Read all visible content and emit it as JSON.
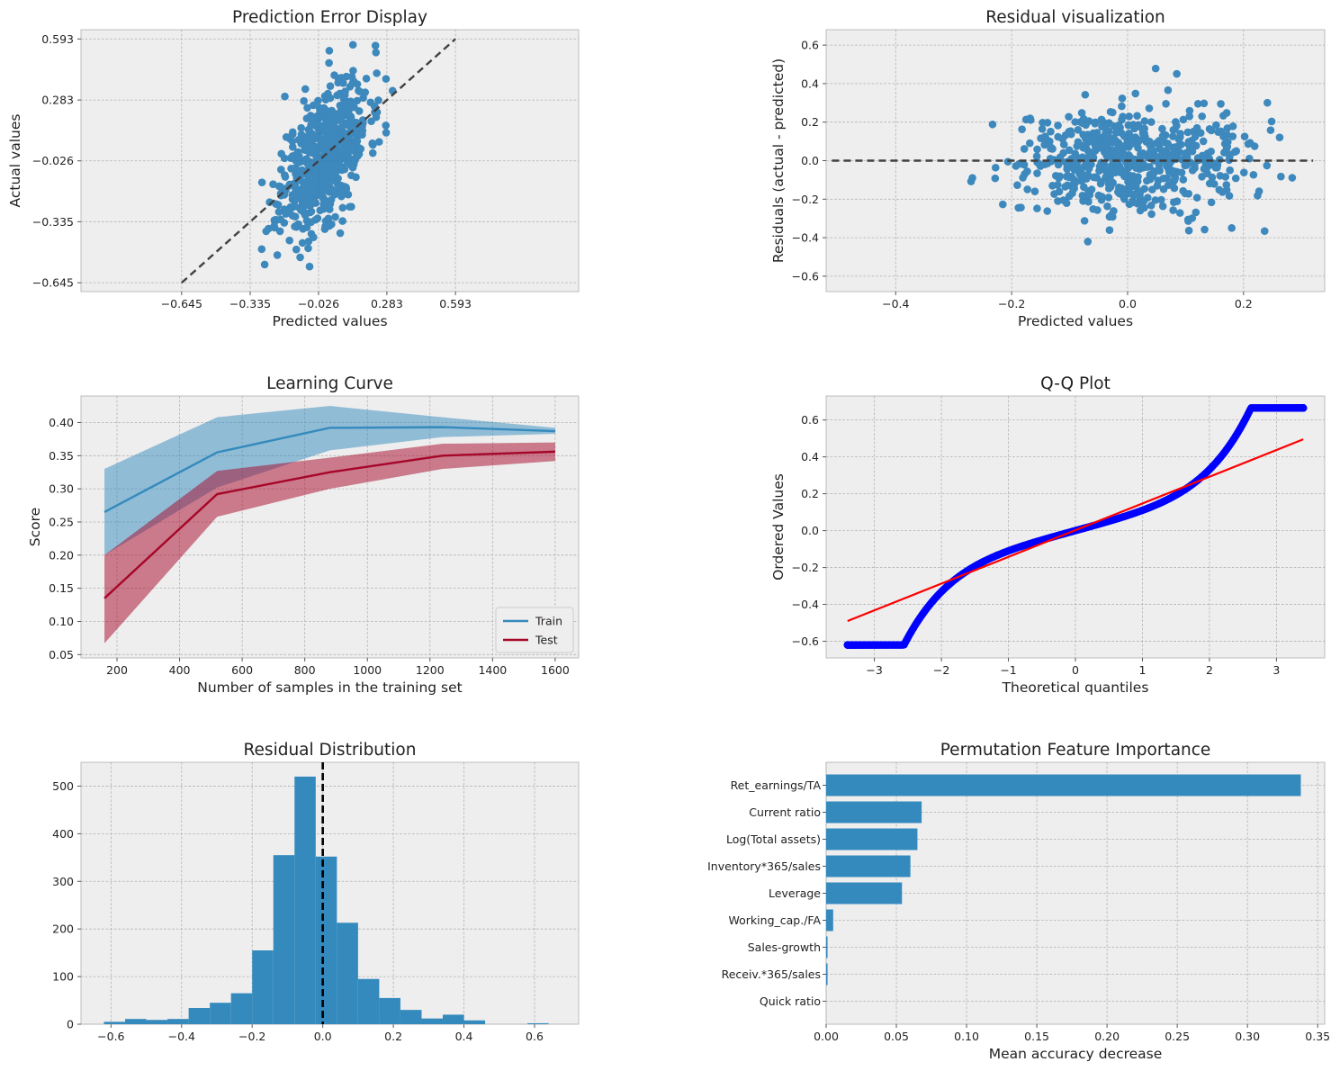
{
  "colors": {
    "scatter": "#1f77b4",
    "train": "#348abd",
    "test": "#a60628",
    "qq_points": "#0000ff",
    "qq_line": "#ff0000",
    "bar": "#348abd",
    "panel_bg": "#eeeeee",
    "reference_line": "#404040"
  },
  "chart_data": [
    {
      "id": "prediction_error",
      "type": "scatter",
      "title": "Prediction Error Display",
      "xlabel": "Predicted values",
      "ylabel": "Actual values",
      "xlim": [
        -1.1,
        1.15
      ],
      "ylim": [
        -0.69,
        0.64
      ],
      "xticks": [
        -0.645,
        -0.335,
        -0.026,
        0.283,
        0.593
      ],
      "xtick_labels": [
        "−0.645",
        "−0.335",
        "−0.026",
        "0.283",
        "0.593"
      ],
      "yticks": [
        -0.645,
        -0.335,
        -0.026,
        0.283,
        0.593
      ],
      "ytick_labels": [
        "−0.645",
        "−0.335",
        "−0.026",
        "0.283",
        "0.593"
      ],
      "reference_line": {
        "from": [
          -0.645,
          -0.645
        ],
        "to": [
          0.593,
          0.593
        ]
      },
      "points": {
        "n": 600,
        "center_x": 0.0,
        "center_y": 0.0,
        "spread_x": 0.1,
        "spread_y": 0.22,
        "slope": 1.0
      }
    },
    {
      "id": "residuals",
      "type": "scatter",
      "title": "Residual visualization",
      "xlabel": "Predicted values",
      "ylabel": "Residuals (actual - predicted)",
      "xlim": [
        -0.52,
        0.34
      ],
      "ylim": [
        -0.68,
        0.68
      ],
      "xticks": [
        -0.4,
        -0.2,
        0.0,
        0.2
      ],
      "xtick_labels": [
        "−0.4",
        "−0.2",
        "0.0",
        "0.2"
      ],
      "yticks": [
        -0.6,
        -0.4,
        -0.2,
        0.0,
        0.2,
        0.4,
        0.6
      ],
      "ytick_labels": [
        "−0.6",
        "−0.4",
        "−0.2",
        "0.0",
        "0.2",
        "0.4",
        "0.6"
      ],
      "reference_line": {
        "from": [
          -0.51,
          0.0
        ],
        "to": [
          0.32,
          0.0
        ]
      },
      "points": {
        "n": 600,
        "center_x": 0.0,
        "spread_x": 0.1,
        "spread_y": 0.14
      }
    },
    {
      "id": "learning_curve",
      "type": "line",
      "title": "Learning Curve",
      "xlabel": "Number of samples in the training set",
      "ylabel": "Score",
      "xlim": [
        85,
        1675
      ],
      "ylim": [
        0.045,
        0.44
      ],
      "xticks": [
        200,
        400,
        600,
        800,
        1000,
        1200,
        1400,
        1600
      ],
      "xtick_labels": [
        "200",
        "400",
        "600",
        "800",
        "1000",
        "1200",
        "1400",
        "1600"
      ],
      "yticks": [
        0.05,
        0.1,
        0.15,
        0.2,
        0.25,
        0.3,
        0.35,
        0.4
      ],
      "ytick_labels": [
        "0.05",
        "0.10",
        "0.15",
        "0.20",
        "0.25",
        "0.30",
        "0.35",
        "0.40"
      ],
      "x": [
        160,
        520,
        880,
        1240,
        1600
      ],
      "series": [
        {
          "name": "Train",
          "values": [
            0.265,
            0.355,
            0.392,
            0.393,
            0.387
          ],
          "lower": [
            0.2,
            0.302,
            0.358,
            0.378,
            0.383
          ],
          "upper": [
            0.33,
            0.408,
            0.425,
            0.408,
            0.392
          ]
        },
        {
          "name": "Test",
          "values": [
            0.135,
            0.292,
            0.325,
            0.35,
            0.356
          ],
          "lower": [
            0.067,
            0.258,
            0.3,
            0.33,
            0.342
          ],
          "upper": [
            0.2,
            0.327,
            0.347,
            0.368,
            0.37
          ]
        }
      ],
      "legend": "bottom-right"
    },
    {
      "id": "qq_plot",
      "type": "scatter",
      "title": "Q-Q Plot",
      "xlabel": "Theoretical quantiles",
      "ylabel": "Ordered Values",
      "xlim": [
        -3.72,
        3.72
      ],
      "ylim": [
        -0.69,
        0.73
      ],
      "xticks": [
        -3,
        -2,
        -1,
        0,
        1,
        2,
        3
      ],
      "xtick_labels": [
        "−3",
        "−2",
        "−1",
        "0",
        "1",
        "2",
        "3"
      ],
      "yticks": [
        -0.6,
        -0.4,
        -0.2,
        0.0,
        0.2,
        0.4,
        0.6
      ],
      "ytick_labels": [
        "−0.6",
        "−0.4",
        "−0.2",
        "0.0",
        "0.2",
        "0.4",
        "0.6"
      ],
      "fit_line": {
        "from": [
          -3.4,
          -0.49
        ],
        "to": [
          3.4,
          0.495
        ]
      },
      "points": {
        "n": 420,
        "x_range": [
          -3.4,
          3.4
        ],
        "y_range": [
          -0.62,
          0.665
        ]
      }
    },
    {
      "id": "residual_distribution",
      "type": "bar",
      "title": "Residual Distribution",
      "xlabel": "",
      "ylabel": "",
      "xlim": [
        -0.685,
        0.725
      ],
      "ylim": [
        0,
        550
      ],
      "xticks": [
        -0.6,
        -0.4,
        -0.2,
        0.0,
        0.2,
        0.4,
        0.6
      ],
      "xtick_labels": [
        "−0.6",
        "−0.4",
        "−0.2",
        "0.0",
        "0.2",
        "0.4",
        "0.6"
      ],
      "yticks": [
        0,
        100,
        200,
        300,
        400,
        500
      ],
      "ytick_labels": [
        "0",
        "100",
        "200",
        "300",
        "400",
        "500"
      ],
      "bin_edges": [
        -0.62,
        -0.56,
        -0.5,
        -0.44,
        -0.38,
        -0.32,
        -0.26,
        -0.2,
        -0.14,
        -0.08,
        -0.02,
        0.04,
        0.1,
        0.16,
        0.22,
        0.28,
        0.34,
        0.4,
        0.46,
        0.52,
        0.58,
        0.64,
        0.66
      ],
      "counts": [
        5,
        11,
        9,
        11,
        34,
        45,
        65,
        155,
        355,
        520,
        352,
        213,
        95,
        55,
        30,
        12,
        20,
        8,
        0,
        0,
        2,
        0
      ],
      "reference_line_x": 0.0
    },
    {
      "id": "permutation_importance",
      "type": "bar",
      "orientation": "horizontal",
      "title": "Permutation Feature Importance",
      "xlabel": "Mean accuracy decrease",
      "ylabel": "",
      "xlim": [
        0,
        0.355
      ],
      "xticks": [
        0.0,
        0.05,
        0.1,
        0.15,
        0.2,
        0.25,
        0.3,
        0.35
      ],
      "xtick_labels": [
        "0.00",
        "0.05",
        "0.10",
        "0.15",
        "0.20",
        "0.25",
        "0.30",
        "0.35"
      ],
      "categories": [
        "Ret_earnings/TA",
        "Current ratio",
        "Log(Total assets)",
        "Inventory*365/sales",
        "Leverage",
        "Working_cap./FA",
        "Sales-growth",
        "Receiv.*365/sales",
        "Quick ratio"
      ],
      "values": [
        0.338,
        0.068,
        0.065,
        0.06,
        0.054,
        0.005,
        0.001,
        0.001,
        0.0
      ]
    }
  ],
  "legend": {
    "train_label": "Train",
    "test_label": "Test"
  }
}
